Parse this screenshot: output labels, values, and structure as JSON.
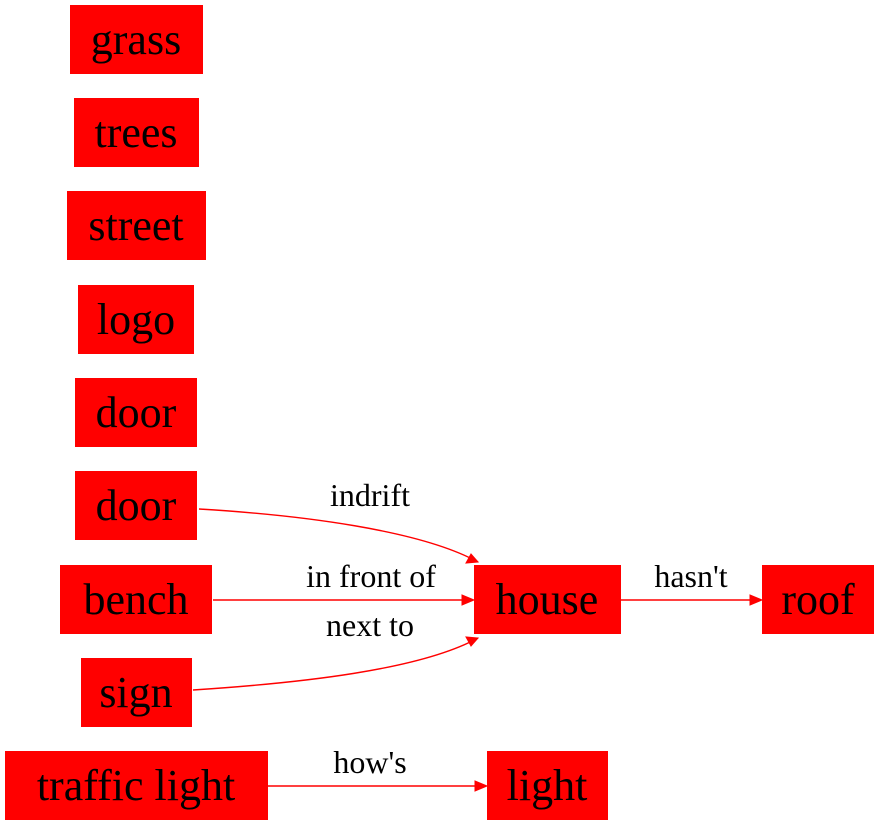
{
  "colors": {
    "node_fill": "#ff0000",
    "edge": "#ff0000",
    "text": "#000000",
    "background": "#ffffff"
  },
  "nodes": [
    {
      "id": "grass",
      "label": "grass"
    },
    {
      "id": "trees",
      "label": "trees"
    },
    {
      "id": "street",
      "label": "street"
    },
    {
      "id": "logo",
      "label": "logo"
    },
    {
      "id": "door1",
      "label": "door"
    },
    {
      "id": "door2",
      "label": "door"
    },
    {
      "id": "bench",
      "label": "bench"
    },
    {
      "id": "sign",
      "label": "sign"
    },
    {
      "id": "traffic_light",
      "label": "traffic light"
    },
    {
      "id": "house",
      "label": "house"
    },
    {
      "id": "roof",
      "label": "roof"
    },
    {
      "id": "light",
      "label": "light"
    }
  ],
  "edges": [
    {
      "id": "e-door-house",
      "from": "door2",
      "to": "house",
      "label": "indrift"
    },
    {
      "id": "e-bench-house",
      "from": "bench",
      "to": "house",
      "label": "in front of"
    },
    {
      "id": "e-sign-house",
      "from": "sign",
      "to": "house",
      "label": "next to"
    },
    {
      "id": "e-house-roof",
      "from": "house",
      "to": "roof",
      "label": "hasn't"
    },
    {
      "id": "e-traffic-light",
      "from": "traffic_light",
      "to": "light",
      "label": "how's"
    }
  ]
}
